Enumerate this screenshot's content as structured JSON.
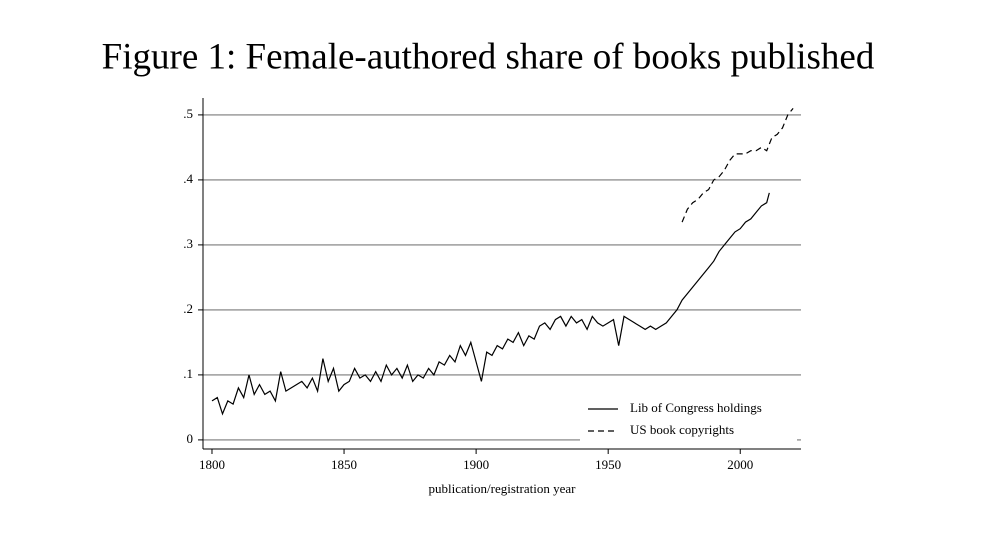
{
  "chart_data": {
    "type": "line",
    "title": "Figure 1: Female-authored share of books published",
    "xlabel": "publication/registration year",
    "xlim": [
      1796.6,
      2023
    ],
    "ylim": [
      -0.014,
      0.526
    ],
    "xticks": [
      1800,
      1850,
      1900,
      1950,
      2000
    ],
    "yticks": [
      0,
      {
        "value": 0.1,
        "label": ".1"
      },
      {
        "value": 0.2,
        "label": ".2"
      },
      {
        "value": 0.3,
        "label": ".3"
      },
      {
        "value": 0.4,
        "label": ".4"
      },
      {
        "value": 0.5,
        "label": ".5"
      }
    ],
    "grid": true,
    "legend": "lower right",
    "series": [
      {
        "name": "Lib of Congress holdings",
        "color": "#000000",
        "linestyle": "solid",
        "x": [
          1800,
          1802,
          1804,
          1806,
          1808,
          1810,
          1812,
          1814,
          1816,
          1818,
          1820,
          1822,
          1824,
          1826,
          1828,
          1830,
          1832,
          1834,
          1836,
          1838,
          1840,
          1842,
          1844,
          1846,
          1848,
          1850,
          1852,
          1854,
          1856,
          1858,
          1860,
          1862,
          1864,
          1866,
          1868,
          1870,
          1872,
          1874,
          1876,
          1878,
          1880,
          1882,
          1884,
          1886,
          1888,
          1890,
          1892,
          1894,
          1896,
          1898,
          1900,
          1902,
          1904,
          1906,
          1908,
          1910,
          1912,
          1914,
          1916,
          1918,
          1920,
          1922,
          1924,
          1926,
          1928,
          1930,
          1932,
          1934,
          1936,
          1938,
          1940,
          1942,
          1944,
          1946,
          1948,
          1950,
          1952,
          1954,
          1956,
          1958,
          1960,
          1962,
          1964,
          1966,
          1968,
          1970,
          1972,
          1974,
          1976,
          1978,
          1980,
          1982,
          1984,
          1986,
          1988,
          1990,
          1992,
          1994,
          1996,
          1998,
          2000,
          2002,
          2004,
          2006,
          2008,
          2010,
          2011
        ],
        "values": [
          0.06,
          0.065,
          0.04,
          0.06,
          0.055,
          0.08,
          0.065,
          0.1,
          0.07,
          0.085,
          0.07,
          0.075,
          0.06,
          0.105,
          0.075,
          0.08,
          0.085,
          0.09,
          0.08,
          0.095,
          0.075,
          0.125,
          0.09,
          0.11,
          0.075,
          0.085,
          0.09,
          0.11,
          0.095,
          0.1,
          0.09,
          0.105,
          0.09,
          0.115,
          0.1,
          0.11,
          0.095,
          0.115,
          0.09,
          0.1,
          0.095,
          0.11,
          0.1,
          0.12,
          0.115,
          0.13,
          0.12,
          0.145,
          0.13,
          0.15,
          0.12,
          0.09,
          0.135,
          0.13,
          0.145,
          0.14,
          0.155,
          0.15,
          0.165,
          0.145,
          0.16,
          0.155,
          0.175,
          0.18,
          0.17,
          0.185,
          0.19,
          0.175,
          0.19,
          0.18,
          0.185,
          0.17,
          0.19,
          0.18,
          0.175,
          0.18,
          0.185,
          0.145,
          0.19,
          0.185,
          0.18,
          0.175,
          0.17,
          0.175,
          0.17,
          0.175,
          0.18,
          0.19,
          0.2,
          0.215,
          0.225,
          0.235,
          0.245,
          0.255,
          0.265,
          0.275,
          0.29,
          0.3,
          0.31,
          0.32,
          0.325,
          0.335,
          0.34,
          0.35,
          0.36,
          0.365,
          0.38
        ]
      },
      {
        "name": "US book copyrights",
        "color": "#000000",
        "linestyle": "dashed",
        "x": [
          1978,
          1980,
          1982,
          1984,
          1986,
          1988,
          1990,
          1992,
          1994,
          1996,
          1998,
          2000,
          2002,
          2004,
          2006,
          2008,
          2010,
          2012,
          2014,
          2016,
          2018,
          2020
        ],
        "values": [
          0.335,
          0.355,
          0.365,
          0.37,
          0.38,
          0.385,
          0.4,
          0.405,
          0.415,
          0.43,
          0.44,
          0.44,
          0.44,
          0.445,
          0.445,
          0.45,
          0.445,
          0.465,
          0.47,
          0.48,
          0.5,
          0.51
        ]
      }
    ]
  }
}
